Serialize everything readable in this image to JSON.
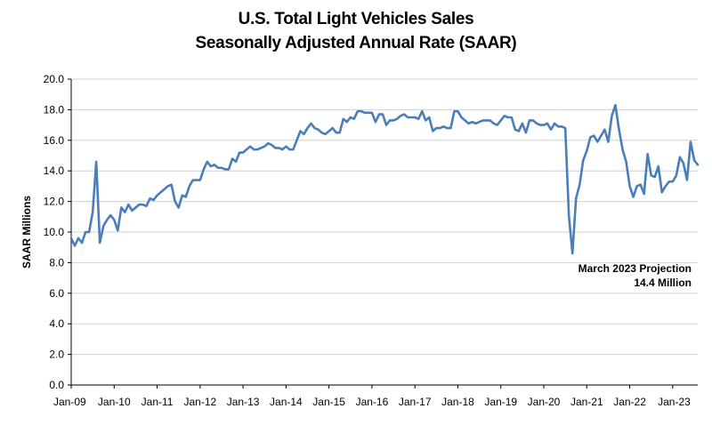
{
  "chart_data": {
    "type": "line",
    "title": "U.S. Total Light Vehicles Sales",
    "subtitle": "Seasonally Adjusted Annual Rate (SAAR)",
    "ylabel": "SAAR Millions",
    "xlabel": "",
    "ylim": [
      0,
      20
    ],
    "yticks": [
      "0.0",
      "2.0",
      "4.0",
      "6.0",
      "8.0",
      "10.0",
      "12.0",
      "14.0",
      "16.0",
      "18.0",
      "20.0"
    ],
    "xticks": [
      "Jan-09",
      "Jan-10",
      "Jan-11",
      "Jan-12",
      "Jan-13",
      "Jan-14",
      "Jan-15",
      "Jan-16",
      "Jan-17",
      "Jan-18",
      "Jan-19",
      "Jan-20",
      "Jan-21",
      "Jan-22",
      "Jan-23"
    ],
    "grid": true,
    "legend": "none",
    "line_color": "#4a7ebb",
    "start": "Jan-09",
    "end": "Mar-23",
    "annotation": [
      "March 2023 Projection",
      "14.4 Million"
    ],
    "values": [
      9.6,
      9.1,
      9.6,
      9.3,
      10.0,
      10.0,
      11.3,
      14.6,
      9.3,
      10.4,
      10.8,
      11.1,
      10.8,
      10.1,
      11.6,
      11.3,
      11.8,
      11.4,
      11.6,
      11.8,
      11.8,
      11.7,
      12.2,
      12.1,
      12.4,
      12.6,
      12.8,
      13.0,
      13.1,
      12.0,
      11.6,
      12.4,
      12.3,
      13.0,
      13.4,
      13.4,
      13.4,
      14.1,
      14.6,
      14.3,
      14.4,
      14.2,
      14.2,
      14.1,
      14.1,
      14.8,
      14.6,
      15.2,
      15.2,
      15.4,
      15.6,
      15.4,
      15.4,
      15.5,
      15.6,
      15.8,
      15.7,
      15.5,
      15.5,
      15.4,
      15.6,
      15.4,
      15.4,
      16.0,
      16.6,
      16.4,
      16.8,
      17.1,
      16.8,
      16.7,
      16.5,
      16.4,
      16.6,
      16.8,
      16.5,
      16.5,
      17.4,
      17.2,
      17.5,
      17.4,
      17.9,
      17.9,
      17.8,
      17.8,
      17.8,
      17.2,
      17.7,
      17.7,
      17.0,
      17.3,
      17.3,
      17.4,
      17.6,
      17.7,
      17.5,
      17.5,
      17.5,
      17.4,
      17.9,
      17.3,
      17.5,
      16.6,
      16.8,
      16.8,
      16.9,
      16.8,
      16.8,
      17.9,
      17.9,
      17.5,
      17.3,
      17.1,
      17.2,
      17.1,
      17.2,
      17.3,
      17.3,
      17.3,
      17.1,
      17.0,
      17.3,
      17.6,
      17.5,
      17.5,
      16.7,
      16.6,
      17.1,
      16.5,
      17.3,
      17.3,
      17.1,
      17.0,
      17.0,
      17.1,
      16.7,
      17.1,
      16.9,
      16.9,
      16.8,
      11.1,
      8.6,
      12.2,
      13.1,
      14.7,
      15.3,
      16.2,
      16.3,
      15.9,
      16.3,
      16.7,
      15.9,
      17.6,
      18.3,
      16.7,
      15.4,
      14.6,
      13.0,
      12.3,
      13.0,
      13.1,
      12.5,
      15.1,
      13.7,
      13.6,
      14.3,
      12.6,
      13.0,
      13.3,
      13.3,
      13.7,
      14.9,
      14.5,
      13.4,
      15.9,
      14.7,
      14.4
    ]
  }
}
